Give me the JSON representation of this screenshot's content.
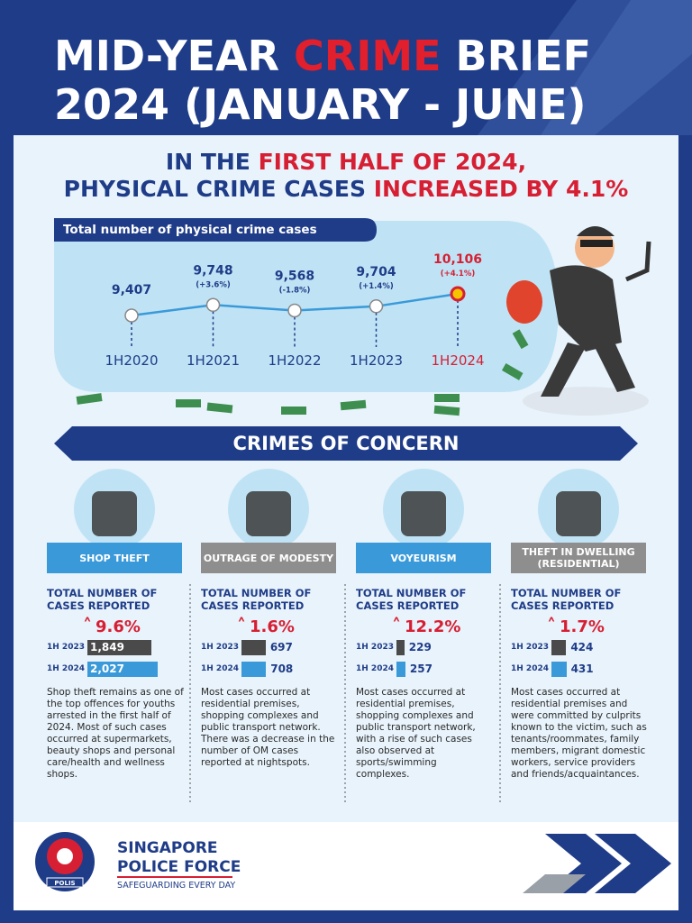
{
  "header": {
    "title_line1": [
      "MID-YEAR ",
      "CRIME",
      " BRIEF"
    ],
    "title_line2": "2024 (JANUARY - JUNE)"
  },
  "headline": {
    "line1": [
      "IN THE ",
      "FIRST HALF OF 2024,"
    ],
    "line2": [
      "PHYSICAL CRIME CASES ",
      "INCREASED BY 4.1%"
    ]
  },
  "chart_data": {
    "type": "line",
    "title": "Total number of physical crime cases",
    "categories": [
      "1H2020",
      "1H2021",
      "1H2022",
      "1H2023",
      "1H2024"
    ],
    "values": [
      9407,
      9748,
      9568,
      9704,
      10106
    ],
    "value_labels": [
      "9,407",
      "9,748",
      "9,568",
      "9,704",
      "10,106"
    ],
    "annotations": [
      null,
      "(+3.6%)",
      "(-1.8%)",
      "(+1.4%)",
      "(+4.1%)"
    ],
    "color": "#3a9ad9",
    "highlight_color": "#d71f33"
  },
  "section_title": "CRIMES OF CONCERN",
  "crimes": [
    {
      "name": "SHOP THEFT",
      "metric": "TOTAL NUMBER OF CASES REPORTED",
      "change": "9.6%",
      "periods": [
        "1H 2023",
        "1H 2024"
      ],
      "values": [
        1849,
        2027
      ],
      "value_labels": [
        "1,849",
        "2,027"
      ],
      "description": "Shop theft remains as one of the top offences for youths arrested in the first half of 2024. Most of such cases occurred at supermarkets, beauty shops and personal care/health and wellness shops."
    },
    {
      "name": "OUTRAGE OF MODESTY",
      "metric": "TOTAL NUMBER OF CASES REPORTED",
      "change": "1.6%",
      "periods": [
        "1H 2023",
        "1H 2024"
      ],
      "values": [
        697,
        708
      ],
      "description": "Most cases occurred at residential premises, shopping complexes and public transport network. There was a decrease in the number of OM cases reported at nightspots."
    },
    {
      "name": "VOYEURISM",
      "metric": "TOTAL NUMBER OF CASES REPORTED",
      "change": "12.2%",
      "periods": [
        "1H 2023",
        "1H 2024"
      ],
      "values": [
        229,
        257
      ],
      "description": "Most cases occurred at residential premises, shopping complexes and public transport network, with a rise of such cases also observed at sports/swimming complexes."
    },
    {
      "name": "THEFT IN DWELLING (RESIDENTIAL)",
      "metric": "TOTAL NUMBER OF CASES REPORTED",
      "change": "1.7%",
      "periods": [
        "1H 2023",
        "1H 2024"
      ],
      "values": [
        424,
        431
      ],
      "description": "Most cases occurred at residential premises and were committed by culprits known to the victim, such as tenants/roommates, family members, migrant domestic workers, service providers and friends/acquaintances."
    }
  ],
  "footer": {
    "org_line1": "SINGAPORE",
    "org_line2": "POLICE FORCE",
    "tagline": "SAFEGUARDING EVERY DAY",
    "badge": "POLIS"
  }
}
